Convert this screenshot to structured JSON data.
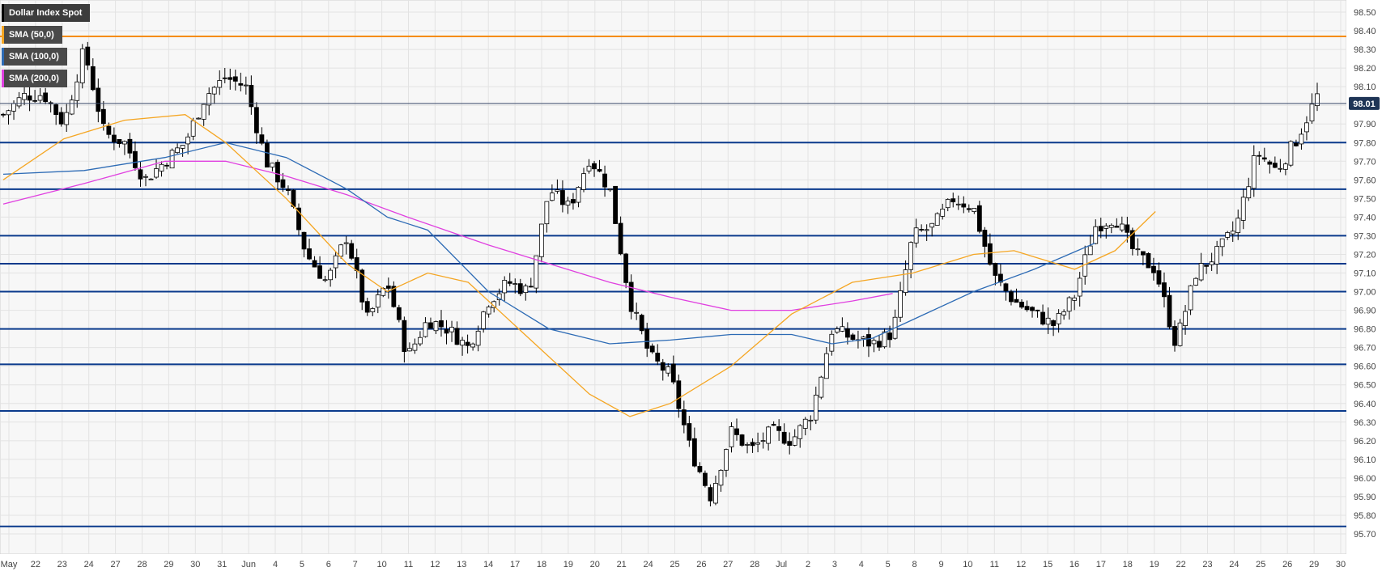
{
  "chart_data": {
    "type": "candlestick",
    "title": "Dollar Index Spot",
    "legend": [
      {
        "label": "SMA (50,0)",
        "color": "#f5a623"
      },
      {
        "label": "SMA (100,0)",
        "color": "#2d6bb5"
      },
      {
        "label": "SMA (200,0)",
        "color": "#e040e0"
      }
    ],
    "ylim": [
      95.66,
      98.58
    ],
    "y_ticks": [
      "98.50",
      "98.40",
      "98.30",
      "98.20",
      "98.10",
      "98.00",
      "97.90",
      "97.80",
      "97.70",
      "97.60",
      "97.50",
      "97.40",
      "97.30",
      "97.20",
      "97.10",
      "97.00",
      "96.90",
      "96.80",
      "96.70",
      "96.60",
      "96.50",
      "96.40",
      "96.30",
      "96.20",
      "96.10",
      "96.00",
      "95.90",
      "95.80",
      "95.70"
    ],
    "x_ticks": [
      "May",
      "22",
      "23",
      "24",
      "27",
      "28",
      "29",
      "30",
      "31",
      "Jun",
      "4",
      "5",
      "6",
      "7",
      "10",
      "11",
      "12",
      "13",
      "14",
      "17",
      "18",
      "19",
      "20",
      "21",
      "24",
      "25",
      "26",
      "27",
      "28",
      "Jul",
      "2",
      "3",
      "4",
      "5",
      "8",
      "9",
      "10",
      "11",
      "12",
      "15",
      "16",
      "17",
      "18",
      "19",
      "22",
      "23",
      "24",
      "25",
      "26",
      "29",
      "30"
    ],
    "last_price": "98.01",
    "grid": true,
    "horizontal_levels": [
      {
        "value": 98.37,
        "color": "#f58c00"
      },
      {
        "value": 97.8,
        "color": "#0a3a8c"
      },
      {
        "value": 97.55,
        "color": "#0a3a8c"
      },
      {
        "value": 97.3,
        "color": "#0a3a8c"
      },
      {
        "value": 97.15,
        "color": "#0a3a8c"
      },
      {
        "value": 97.0,
        "color": "#0a3a8c"
      },
      {
        "value": 96.8,
        "color": "#0a3a8c"
      },
      {
        "value": 96.61,
        "color": "#0a3a8c"
      },
      {
        "value": 96.36,
        "color": "#0a3a8c"
      },
      {
        "value": 95.74,
        "color": "#0a3a8c"
      }
    ],
    "close_anchors": [
      [
        0,
        97.95
      ],
      [
        1,
        98.05
      ],
      [
        2,
        98.06
      ],
      [
        3,
        97.9
      ],
      [
        4,
        98.3
      ],
      [
        5,
        97.85
      ],
      [
        6,
        97.8
      ],
      [
        7,
        97.6
      ],
      [
        8,
        97.7
      ],
      [
        9,
        97.8
      ],
      [
        10,
        98.05
      ],
      [
        11,
        98.15
      ],
      [
        12,
        98.1
      ],
      [
        13,
        97.7
      ],
      [
        14,
        97.55
      ],
      [
        15,
        97.2
      ],
      [
        16,
        97.05
      ],
      [
        17,
        97.3
      ],
      [
        18,
        96.85
      ],
      [
        19,
        97.05
      ],
      [
        20,
        96.65
      ],
      [
        21,
        96.85
      ],
      [
        22,
        96.8
      ],
      [
        23,
        96.7
      ],
      [
        24,
        96.95
      ],
      [
        25,
        97.05
      ],
      [
        26,
        97.0
      ],
      [
        27,
        97.55
      ],
      [
        28,
        97.45
      ],
      [
        29,
        97.72
      ],
      [
        30,
        97.55
      ],
      [
        31,
        96.95
      ],
      [
        32,
        96.65
      ],
      [
        33,
        96.55
      ],
      [
        34,
        96.15
      ],
      [
        35,
        95.9
      ],
      [
        36,
        96.25
      ],
      [
        37,
        96.15
      ],
      [
        38,
        96.25
      ],
      [
        39,
        96.2
      ],
      [
        40,
        96.35
      ],
      [
        41,
        96.8
      ],
      [
        42,
        96.75
      ],
      [
        43,
        96.72
      ],
      [
        44,
        96.78
      ],
      [
        45,
        97.3
      ],
      [
        46,
        97.35
      ],
      [
        47,
        97.5
      ],
      [
        48,
        97.45
      ],
      [
        49,
        97.08
      ],
      [
        50,
        96.95
      ],
      [
        51,
        96.88
      ],
      [
        52,
        96.82
      ],
      [
        53,
        96.98
      ],
      [
        54,
        97.35
      ],
      [
        55,
        97.4
      ],
      [
        56,
        97.2
      ],
      [
        57,
        97.12
      ],
      [
        58,
        96.72
      ],
      [
        59,
        97.1
      ],
      [
        60,
        97.2
      ],
      [
        61,
        97.35
      ],
      [
        62,
        97.75
      ],
      [
        63,
        97.65
      ],
      [
        64,
        97.82
      ],
      [
        65,
        98.05
      ]
    ],
    "sma50": [
      [
        0,
        97.6
      ],
      [
        3,
        97.82
      ],
      [
        6,
        97.92
      ],
      [
        9,
        97.95
      ],
      [
        11,
        97.8
      ],
      [
        14,
        97.5
      ],
      [
        17,
        97.15
      ],
      [
        19,
        97.0
      ],
      [
        21,
        97.1
      ],
      [
        23,
        97.05
      ],
      [
        26,
        96.75
      ],
      [
        29,
        96.45
      ],
      [
        31,
        96.33
      ],
      [
        33,
        96.4
      ],
      [
        36,
        96.6
      ],
      [
        39,
        96.88
      ],
      [
        42,
        97.05
      ],
      [
        45,
        97.1
      ],
      [
        48,
        97.2
      ],
      [
        50,
        97.22
      ],
      [
        53,
        97.12
      ],
      [
        55,
        97.22
      ],
      [
        57,
        97.43
      ]
    ],
    "sma100": [
      [
        0,
        97.63
      ],
      [
        4,
        97.65
      ],
      [
        8,
        97.72
      ],
      [
        11,
        97.8
      ],
      [
        14,
        97.72
      ],
      [
        17,
        97.55
      ],
      [
        19,
        97.4
      ],
      [
        21,
        97.33
      ],
      [
        24,
        97.0
      ],
      [
        27,
        96.8
      ],
      [
        30,
        96.72
      ],
      [
        33,
        96.74
      ],
      [
        36,
        96.77
      ],
      [
        39,
        96.77
      ],
      [
        41,
        96.72
      ],
      [
        43,
        96.75
      ],
      [
        45,
        96.85
      ],
      [
        48,
        97.0
      ],
      [
        51,
        97.12
      ],
      [
        54,
        97.26
      ]
    ],
    "sma200": [
      [
        0,
        97.47
      ],
      [
        4,
        97.58
      ],
      [
        8,
        97.7
      ],
      [
        11,
        97.7
      ],
      [
        14,
        97.62
      ],
      [
        17,
        97.52
      ],
      [
        20,
        97.4
      ],
      [
        24,
        97.25
      ],
      [
        27,
        97.15
      ],
      [
        30,
        97.05
      ],
      [
        33,
        96.97
      ],
      [
        36,
        96.9
      ],
      [
        39,
        96.9
      ],
      [
        42,
        96.95
      ],
      [
        44,
        96.99
      ]
    ]
  }
}
